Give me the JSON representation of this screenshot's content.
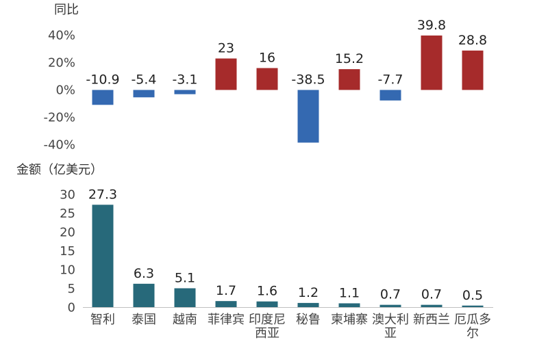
{
  "chart_data": [
    {
      "type": "bar",
      "ylabel": "同比",
      "categories": [
        "智利",
        "泰国",
        "越南",
        "菲律宾",
        "印度尼西亚",
        "秘鲁",
        "柬埔寨",
        "澳大利亚",
        "新西兰",
        "厄瓜多尔"
      ],
      "values": [
        -10.9,
        -5.4,
        -3.1,
        23,
        16,
        -38.5,
        15.2,
        -7.7,
        39.8,
        28.8
      ],
      "ylim": [
        -40,
        40
      ],
      "yticks": [
        "40%",
        "20%",
        "0%",
        "-20%",
        "-40%"
      ],
      "colors": {
        "positive": "#a62b2b",
        "negative": "#3469b1"
      }
    },
    {
      "type": "bar",
      "ylabel": "金额（亿美元）",
      "categories": [
        "智利",
        "泰国",
        "越南",
        "菲律宾",
        "印度尼西亚",
        "秘鲁",
        "柬埔寨",
        "澳大利亚",
        "新西兰",
        "厄瓜多尔"
      ],
      "values": [
        27.3,
        6.3,
        5.1,
        1.7,
        1.6,
        1.2,
        1.1,
        0.7,
        0.7,
        0.5
      ],
      "ylim": [
        0,
        30
      ],
      "yticks": [
        "30",
        "25",
        "20",
        "15",
        "10",
        "5",
        "0"
      ],
      "colors": {
        "bar": "#27697a"
      }
    }
  ]
}
